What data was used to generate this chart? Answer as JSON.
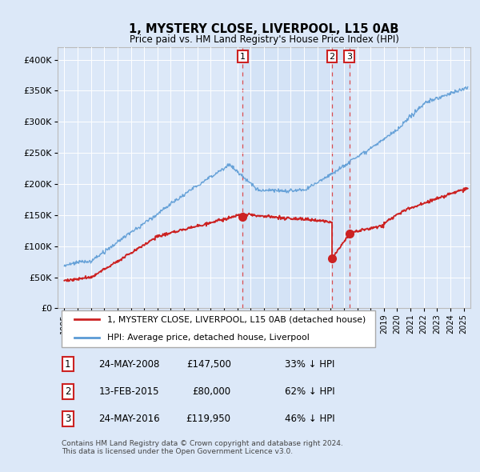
{
  "title": "1, MYSTERY CLOSE, LIVERPOOL, L15 0AB",
  "subtitle": "Price paid vs. HM Land Registry's House Price Index (HPI)",
  "background_color": "#dce8f8",
  "plot_bg_color": "#dce8f8",
  "red_line_color": "#cc2222",
  "blue_line_color": "#5b9bd5",
  "red_line_label": "1, MYSTERY CLOSE, LIVERPOOL, L15 0AB (detached house)",
  "blue_line_label": "HPI: Average price, detached house, Liverpool",
  "footer": "Contains HM Land Registry data © Crown copyright and database right 2024.\nThis data is licensed under the Open Government Licence v3.0.",
  "sale_events": [
    {
      "num": 1,
      "date": "24-MAY-2008",
      "price": "£147,500",
      "pct": "33% ↓ HPI",
      "year": 2008.4
    },
    {
      "num": 2,
      "date": "13-FEB-2015",
      "price": "£80,000",
      "pct": "62% ↓ HPI",
      "year": 2015.1
    },
    {
      "num": 3,
      "date": "24-MAY-2016",
      "price": "£119,950",
      "pct": "46% ↓ HPI",
      "year": 2016.4
    }
  ],
  "sale_prices": [
    147500,
    80000,
    119950
  ],
  "ylim": [
    0,
    420000
  ],
  "xlim_start": 1994.5,
  "xlim_end": 2025.5,
  "yticks": [
    0,
    50000,
    100000,
    150000,
    200000,
    250000,
    300000,
    350000,
    400000
  ],
  "ytick_labels": [
    "£0",
    "£50K",
    "£100K",
    "£150K",
    "£200K",
    "£250K",
    "£300K",
    "£350K",
    "£400K"
  ]
}
